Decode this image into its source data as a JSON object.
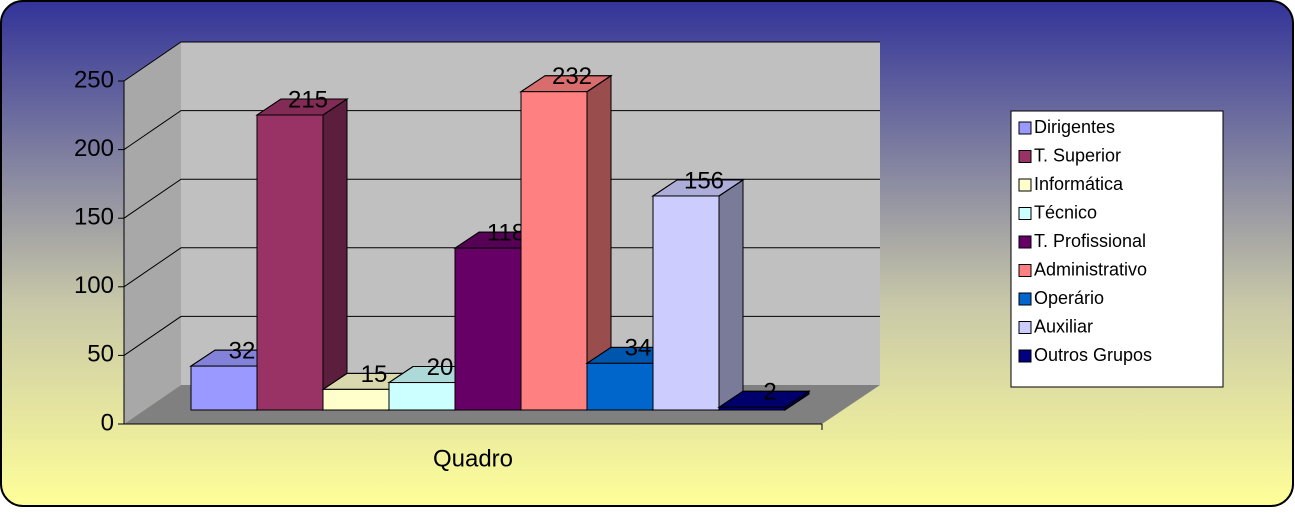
{
  "chart_data": {
    "type": "bar",
    "categories": [
      "Quadro"
    ],
    "series": [
      {
        "name": "Dirigentes",
        "color": "#9999ff",
        "values": [
          32
        ]
      },
      {
        "name": "T. Superior",
        "color": "#993366",
        "values": [
          215
        ]
      },
      {
        "name": "Informática",
        "color": "#ffffcc",
        "values": [
          15
        ]
      },
      {
        "name": "Técnico",
        "color": "#ccffff",
        "values": [
          20
        ]
      },
      {
        "name": "T. Profissional",
        "color": "#660066",
        "values": [
          118
        ]
      },
      {
        "name": "Administrativo",
        "color": "#ff8080",
        "values": [
          232
        ]
      },
      {
        "name": "Operário",
        "color": "#0066cc",
        "values": [
          34
        ]
      },
      {
        "name": "Auxiliar",
        "color": "#ccccff",
        "values": [
          156
        ]
      },
      {
        "name": "Outros Grupos",
        "color": "#000080",
        "values": [
          2
        ]
      }
    ],
    "ylim": [
      0,
      250
    ],
    "yticks": [
      0,
      50,
      100,
      150,
      200,
      250
    ],
    "grid": true,
    "legend": "right"
  }
}
